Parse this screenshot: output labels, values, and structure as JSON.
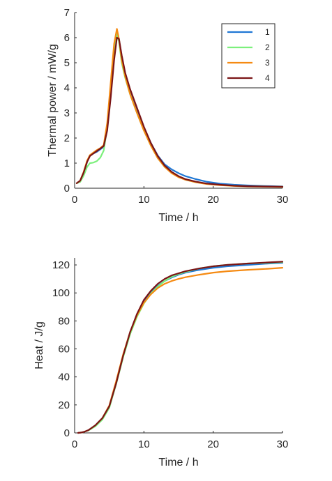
{
  "chart_data": [
    {
      "type": "line",
      "xlabel": "Time / h",
      "ylabel": "Thermal power / mW/g",
      "xlim": [
        0,
        30
      ],
      "ylim": [
        0,
        7
      ],
      "xticks": [
        0,
        10,
        20,
        30
      ],
      "yticks": [
        0,
        1,
        2,
        3,
        4,
        5,
        6,
        7
      ],
      "grid": false,
      "legend": "top-right",
      "series": [
        {
          "name": "1",
          "color": "#1f77d4",
          "x": [
            0.3,
            0.8,
            1.3,
            1.8,
            2.2,
            2.7,
            3.2,
            3.7,
            4.2,
            4.7,
            5.2,
            5.7,
            6.1,
            6.4,
            6.8,
            7.3,
            8.0,
            9.0,
            10.0,
            11.0,
            12.0,
            13.0,
            14.0,
            15.0,
            16.0,
            17.5,
            19.0,
            21.0,
            23.0,
            25.0,
            27.5,
            30.0
          ],
          "y": [
            0.2,
            0.28,
            0.6,
            1.05,
            1.3,
            1.38,
            1.45,
            1.55,
            1.65,
            2.4,
            3.8,
            5.3,
            6.15,
            5.9,
            5.1,
            4.5,
            3.85,
            3.1,
            2.4,
            1.8,
            1.3,
            0.95,
            0.75,
            0.6,
            0.48,
            0.36,
            0.26,
            0.18,
            0.14,
            0.11,
            0.09,
            0.07
          ]
        },
        {
          "name": "2",
          "color": "#7cf07c",
          "x": [
            0.3,
            0.8,
            1.3,
            1.8,
            2.2,
            2.7,
            3.2,
            3.7,
            4.2,
            4.7,
            5.2,
            5.7,
            6.1,
            6.4,
            6.8,
            7.3,
            8.0,
            9.0,
            10.0,
            11.0,
            12.0,
            13.0,
            14.0,
            15.0,
            16.0,
            17.5,
            19.0,
            21.0,
            23.0,
            25.0,
            27.5,
            30.0
          ],
          "y": [
            0.2,
            0.25,
            0.5,
            0.85,
            1.0,
            1.02,
            1.08,
            1.22,
            1.5,
            2.4,
            3.9,
            5.3,
            6.15,
            5.85,
            5.0,
            4.4,
            3.75,
            3.0,
            2.3,
            1.7,
            1.2,
            0.85,
            0.62,
            0.45,
            0.34,
            0.24,
            0.18,
            0.13,
            0.1,
            0.08,
            0.07,
            0.06
          ]
        },
        {
          "name": "3",
          "color": "#f58a12",
          "x": [
            0.3,
            0.8,
            1.3,
            1.8,
            2.2,
            2.7,
            3.2,
            3.7,
            4.2,
            4.7,
            5.2,
            5.7,
            6.1,
            6.4,
            6.8,
            7.3,
            8.0,
            9.0,
            10.0,
            11.0,
            12.0,
            13.0,
            14.0,
            15.0,
            16.0,
            17.5,
            19.0,
            21.0,
            23.0,
            25.0,
            27.5,
            30.0
          ],
          "y": [
            0.2,
            0.3,
            0.65,
            1.1,
            1.32,
            1.42,
            1.52,
            1.6,
            1.72,
            2.6,
            4.2,
            5.75,
            6.35,
            5.95,
            5.1,
            4.45,
            3.75,
            3.0,
            2.3,
            1.7,
            1.2,
            0.85,
            0.6,
            0.44,
            0.34,
            0.24,
            0.17,
            0.12,
            0.09,
            0.07,
            0.06,
            0.05
          ]
        },
        {
          "name": "4",
          "color": "#7a1416",
          "x": [
            0.3,
            0.8,
            1.3,
            1.8,
            2.2,
            2.7,
            3.2,
            3.7,
            4.2,
            4.7,
            5.2,
            5.7,
            6.1,
            6.4,
            6.8,
            7.3,
            8.0,
            9.0,
            10.0,
            11.0,
            12.0,
            13.0,
            14.0,
            15.0,
            16.0,
            17.5,
            19.0,
            21.0,
            23.0,
            25.0,
            27.5,
            30.0
          ],
          "y": [
            0.2,
            0.3,
            0.62,
            1.05,
            1.28,
            1.38,
            1.48,
            1.58,
            1.68,
            2.3,
            3.6,
            5.1,
            6.0,
            5.95,
            5.3,
            4.6,
            3.95,
            3.2,
            2.45,
            1.8,
            1.28,
            0.9,
            0.65,
            0.48,
            0.36,
            0.26,
            0.19,
            0.14,
            0.1,
            0.08,
            0.07,
            0.06
          ]
        }
      ]
    },
    {
      "type": "line",
      "xlabel": "Time / h",
      "ylabel": "Heat / J/g",
      "xlim": [
        0,
        30
      ],
      "ylim": [
        0,
        125
      ],
      "xticks": [
        0,
        10,
        20,
        30
      ],
      "yticks": [
        0,
        20,
        40,
        60,
        80,
        100,
        120
      ],
      "grid": false,
      "series": [
        {
          "name": "1",
          "color": "#1f77d4",
          "x": [
            0.5,
            1.0,
            1.5,
            2.0,
            3.0,
            4.0,
            5.0,
            6.0,
            7.0,
            8.0,
            9.0,
            10.0,
            11.0,
            12.0,
            13.0,
            14.0,
            15.0,
            16.0,
            18.0,
            20.0,
            22.0,
            25.0,
            28.0,
            30.0
          ],
          "y": [
            0,
            0.3,
            1.0,
            2.0,
            5.5,
            10.5,
            19.0,
            36.0,
            55.0,
            71.5,
            84.0,
            93.5,
            100.0,
            105.0,
            108.5,
            111.0,
            113.0,
            114.5,
            116.5,
            118.0,
            119.0,
            120.0,
            121.0,
            121.5
          ]
        },
        {
          "name": "2",
          "color": "#7cf07c",
          "x": [
            0.5,
            1.0,
            1.5,
            2.0,
            3.0,
            4.0,
            5.0,
            6.0,
            7.0,
            8.0,
            9.0,
            10.0,
            11.0,
            12.0,
            13.0,
            14.0,
            15.0,
            16.0,
            18.0,
            20.0,
            22.0,
            25.0,
            28.0,
            30.0
          ],
          "y": [
            0,
            0.3,
            1.0,
            1.8,
            4.8,
            9.5,
            18.0,
            35.0,
            54.0,
            70.5,
            83.0,
            92.5,
            99.5,
            104.5,
            108.5,
            111.5,
            113.5,
            115.0,
            117.5,
            119.0,
            120.0,
            121.0,
            121.5,
            122.0
          ]
        },
        {
          "name": "3",
          "color": "#f58a12",
          "x": [
            0.5,
            1.0,
            1.5,
            2.0,
            3.0,
            4.0,
            5.0,
            6.0,
            7.0,
            8.0,
            9.0,
            10.0,
            11.0,
            12.0,
            13.0,
            14.0,
            15.0,
            16.0,
            18.0,
            20.0,
            22.0,
            25.0,
            28.0,
            30.0
          ],
          "y": [
            0,
            0.3,
            1.0,
            2.0,
            5.5,
            10.5,
            19.5,
            37.0,
            56.0,
            72.0,
            84.0,
            93.0,
            99.0,
            103.5,
            106.5,
            108.5,
            110.0,
            111.2,
            113.0,
            114.5,
            115.5,
            116.5,
            117.3,
            118.0
          ]
        },
        {
          "name": "4",
          "color": "#7a1416",
          "x": [
            0.5,
            1.0,
            1.5,
            2.0,
            3.0,
            4.0,
            5.0,
            6.0,
            7.0,
            8.0,
            9.0,
            10.0,
            11.0,
            12.0,
            13.0,
            14.0,
            15.0,
            16.0,
            18.0,
            20.0,
            22.0,
            25.0,
            28.0,
            30.0
          ],
          "y": [
            0,
            0.3,
            1.0,
            2.0,
            5.5,
            10.5,
            19.0,
            35.5,
            55.0,
            72.0,
            85.0,
            95.0,
            101.5,
            106.5,
            110.0,
            112.5,
            114.0,
            115.5,
            117.5,
            119.0,
            120.0,
            121.0,
            121.8,
            122.3
          ]
        }
      ]
    }
  ]
}
